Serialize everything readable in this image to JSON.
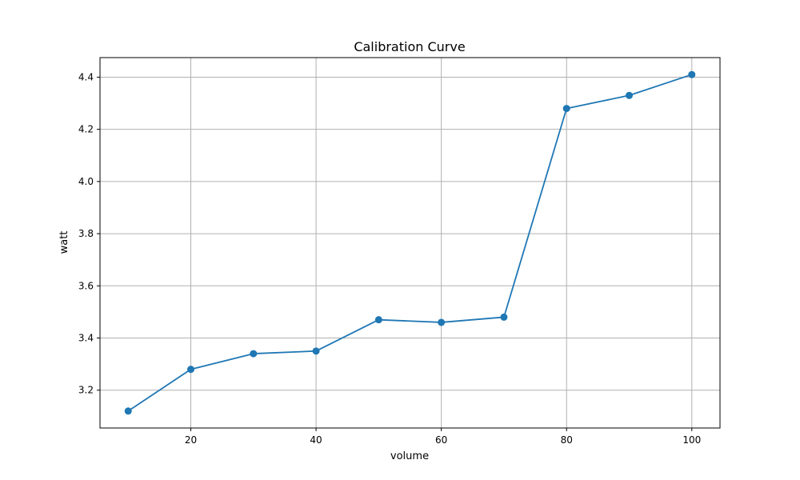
{
  "chart_data": {
    "type": "line",
    "title": "Calibration Curve",
    "xlabel": "volume",
    "ylabel": "watt",
    "x": [
      10,
      20,
      30,
      40,
      50,
      60,
      70,
      80,
      90,
      100
    ],
    "series": [
      {
        "values": [
          3.12,
          3.28,
          3.34,
          3.35,
          3.47,
          3.46,
          3.48,
          4.28,
          4.33,
          4.41
        ],
        "color": "#1f77b4",
        "marker": "circle"
      }
    ],
    "xlim": [
      5.5,
      104.5
    ],
    "ylim": [
      3.055,
      4.475
    ],
    "xticks": [
      20,
      40,
      60,
      80,
      100
    ],
    "yticks": [
      3.2,
      3.4,
      3.6,
      3.8,
      4.0,
      4.2,
      4.4
    ],
    "yticks_format": 1,
    "grid": true,
    "legend": "none"
  }
}
